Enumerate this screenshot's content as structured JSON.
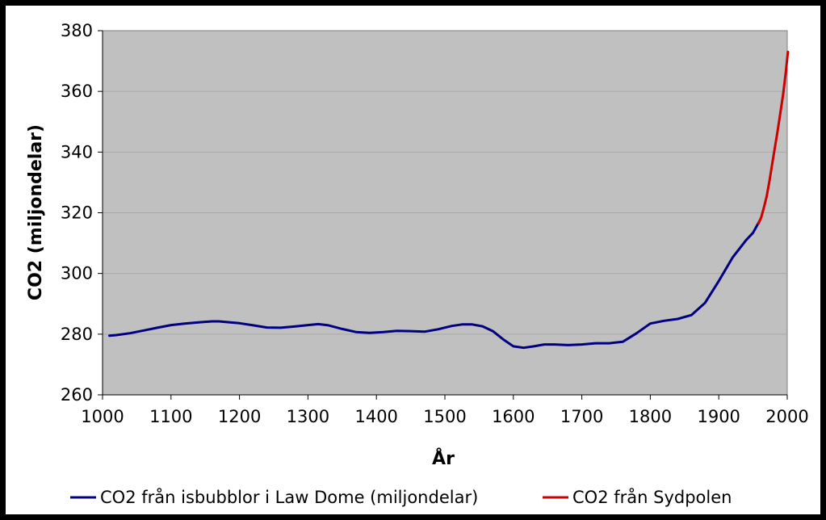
{
  "chart_data": {
    "type": "line",
    "title": "",
    "xlabel": "År",
    "ylabel": "CO2 (miljondelar)",
    "xlim": [
      1000,
      2000
    ],
    "ylim": [
      260,
      380
    ],
    "xticks": [
      1000,
      1100,
      1200,
      1300,
      1400,
      1500,
      1600,
      1700,
      1800,
      1900,
      2000
    ],
    "yticks": [
      260,
      280,
      300,
      320,
      340,
      360,
      380
    ],
    "grid": true,
    "legend_position": "bottom",
    "plot_background": "#c0c0c0",
    "series": [
      {
        "name": "CO2 från isbubblor i Law Dome (miljondelar)",
        "color": "#000080",
        "x": [
          1010,
          1020,
          1040,
          1060,
          1080,
          1100,
          1120,
          1140,
          1160,
          1170,
          1180,
          1200,
          1220,
          1240,
          1260,
          1280,
          1300,
          1315,
          1330,
          1350,
          1370,
          1390,
          1410,
          1430,
          1450,
          1470,
          1490,
          1510,
          1525,
          1540,
          1555,
          1570,
          1585,
          1600,
          1615,
          1630,
          1645,
          1660,
          1680,
          1700,
          1720,
          1740,
          1760,
          1780,
          1800,
          1820,
          1840,
          1860,
          1880,
          1900,
          1920,
          1940,
          1950,
          1960
        ],
        "values": [
          279.5,
          279.7,
          280.3,
          281.2,
          282.1,
          283.0,
          283.5,
          283.9,
          284.2,
          284.2,
          284.0,
          283.6,
          282.9,
          282.2,
          282.1,
          282.5,
          283.0,
          283.3,
          282.9,
          281.7,
          280.7,
          280.4,
          280.7,
          281.1,
          281.0,
          280.8,
          281.6,
          282.7,
          283.2,
          283.2,
          282.6,
          281.0,
          278.3,
          276.0,
          275.5,
          276.0,
          276.6,
          276.6,
          276.4,
          276.6,
          277.0,
          277.0,
          277.5,
          280.3,
          283.5,
          284.4,
          285.0,
          286.3,
          290.3,
          297.5,
          305.2,
          311.0,
          313.4,
          317.5
        ]
      },
      {
        "name": "CO2 från Sydpolen",
        "color": "#cc0000",
        "x": [
          1958,
          1962,
          1966,
          1970,
          1974,
          1978,
          1982,
          1986,
          1990,
          1994,
          1998,
          2001
        ],
        "values": [
          316.5,
          318.5,
          321.8,
          325.5,
          330.5,
          336.0,
          341.5,
          347.0,
          353.0,
          359.0,
          366.5,
          373.0
        ]
      }
    ]
  }
}
